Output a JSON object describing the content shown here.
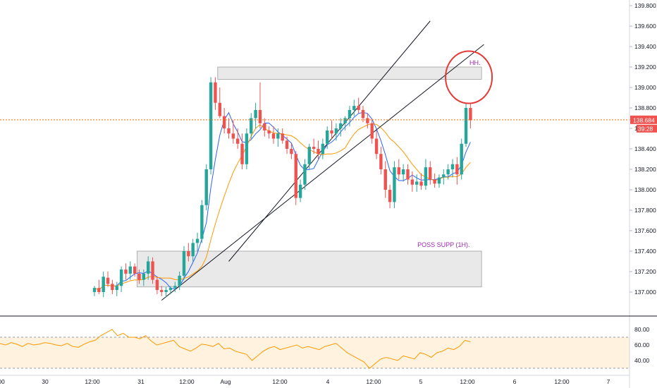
{
  "colors": {
    "up": "#26a69a",
    "down": "#ef5350",
    "ma_fast": "#2962ff",
    "ma_slow": "#ff9800",
    "rsi_line": "#ff9800",
    "rsi_band": "#fff3e0",
    "zone_fill": "#e0e0e0",
    "zone_stroke": "#9e9e9e",
    "annotation": "#9c27b0",
    "circle": "#e53935",
    "trendline": "#131722",
    "price_line": "#ef6c00"
  },
  "chart_data": [
    {
      "type": "candlestick",
      "title": "",
      "ylim": [
        136.92,
        139.85
      ],
      "x_tick_labels": [
        "00",
        "30",
        "12:00",
        "31",
        "12:00",
        "Aug",
        "12:00",
        "4",
        "12:00",
        "5",
        "12:00",
        "6",
        "12:00",
        "7"
      ],
      "y_tick_labels": [
        "137.000",
        "137.200",
        "137.400",
        "137.600",
        "137.800",
        "138.000",
        "138.200",
        "138.400",
        "138.600",
        "138.800",
        "139.000",
        "139.200",
        "139.400",
        "139.600",
        "139.800"
      ],
      "current_price": "138.684",
      "countdown": "39:28",
      "candles": [
        [
          137.0,
          137.06,
          136.96,
          137.04
        ],
        [
          137.04,
          137.12,
          136.98,
          137.0
        ],
        [
          137.0,
          137.2,
          136.95,
          137.15
        ],
        [
          137.14,
          137.2,
          137.05,
          137.08
        ],
        [
          137.08,
          137.12,
          136.98,
          137.02
        ],
        [
          137.02,
          137.1,
          136.96,
          137.06
        ],
        [
          137.06,
          137.25,
          137.0,
          137.22
        ],
        [
          137.22,
          137.28,
          137.12,
          137.18
        ],
        [
          137.18,
          137.3,
          137.12,
          137.25
        ],
        [
          137.25,
          137.28,
          137.15,
          137.18
        ],
        [
          137.18,
          137.22,
          137.08,
          137.12
        ],
        [
          137.12,
          137.22,
          137.06,
          137.18
        ],
        [
          137.18,
          137.35,
          137.12,
          137.3
        ],
        [
          137.3,
          137.34,
          137.08,
          137.12
        ],
        [
          137.12,
          137.15,
          136.98,
          137.02
        ],
        [
          137.02,
          137.06,
          136.96,
          137.0
        ],
        [
          137.0,
          137.05,
          136.95,
          137.02
        ],
        [
          137.02,
          137.06,
          136.98,
          137.04
        ],
        [
          137.04,
          137.1,
          137.0,
          137.06
        ],
        [
          137.06,
          137.2,
          137.02,
          137.16
        ],
        [
          137.16,
          137.45,
          137.12,
          137.4
        ],
        [
          137.4,
          137.48,
          137.3,
          137.35
        ],
        [
          137.35,
          137.52,
          137.3,
          137.48
        ],
        [
          137.48,
          137.58,
          137.4,
          137.52
        ],
        [
          137.52,
          137.9,
          137.48,
          137.85
        ],
        [
          137.85,
          138.25,
          137.8,
          138.2
        ],
        [
          138.2,
          139.1,
          138.15,
          139.05
        ],
        [
          139.05,
          139.1,
          138.78,
          138.85
        ],
        [
          138.85,
          139.0,
          138.7,
          138.72
        ],
        [
          138.72,
          138.8,
          138.55,
          138.6
        ],
        [
          138.6,
          138.7,
          138.5,
          138.55
        ],
        [
          138.55,
          138.68,
          138.45,
          138.5
        ],
        [
          138.5,
          138.6,
          138.4,
          138.45
        ],
        [
          138.45,
          138.55,
          138.2,
          138.25
        ],
        [
          138.25,
          138.6,
          138.2,
          138.55
        ],
        [
          138.55,
          138.75,
          138.5,
          138.7
        ],
        [
          138.7,
          138.85,
          138.6,
          138.78
        ],
        [
          138.78,
          139.05,
          138.6,
          138.65
        ],
        [
          138.65,
          138.7,
          138.52,
          138.58
        ],
        [
          138.58,
          138.62,
          138.5,
          138.55
        ],
        [
          138.55,
          138.62,
          138.45,
          138.5
        ],
        [
          138.5,
          138.6,
          138.42,
          138.55
        ],
        [
          138.55,
          138.6,
          138.45,
          138.48
        ],
        [
          138.48,
          138.52,
          138.35,
          138.4
        ],
        [
          138.4,
          138.45,
          138.3,
          138.35
        ],
        [
          138.35,
          138.38,
          137.85,
          137.92
        ],
        [
          137.92,
          138.1,
          137.88,
          138.05
        ],
        [
          138.05,
          138.3,
          138.0,
          138.25
        ],
        [
          138.25,
          138.45,
          138.2,
          138.42
        ],
        [
          138.42,
          138.5,
          138.35,
          138.4
        ],
        [
          138.4,
          138.48,
          138.3,
          138.35
        ],
        [
          138.35,
          138.5,
          138.3,
          138.45
        ],
        [
          138.45,
          138.62,
          138.4,
          138.58
        ],
        [
          138.58,
          138.68,
          138.5,
          138.55
        ],
        [
          138.55,
          138.65,
          138.48,
          138.6
        ],
        [
          138.6,
          138.7,
          138.52,
          138.65
        ],
        [
          138.65,
          138.72,
          138.58,
          138.7
        ],
        [
          138.7,
          138.82,
          138.62,
          138.78
        ],
        [
          138.78,
          138.88,
          138.72,
          138.82
        ],
        [
          138.82,
          138.9,
          138.75,
          138.78
        ],
        [
          138.78,
          138.82,
          138.66,
          138.7
        ],
        [
          138.7,
          138.75,
          138.6,
          138.65
        ],
        [
          138.65,
          138.7,
          138.45,
          138.5
        ],
        [
          138.5,
          138.58,
          138.3,
          138.35
        ],
        [
          138.35,
          138.42,
          138.15,
          138.2
        ],
        [
          138.2,
          138.28,
          137.92,
          138.0
        ],
        [
          138.0,
          138.05,
          137.82,
          137.88
        ],
        [
          137.88,
          138.28,
          137.82,
          138.22
        ],
        [
          138.22,
          138.3,
          138.1,
          138.15
        ],
        [
          138.15,
          138.25,
          138.08,
          138.2
        ],
        [
          138.2,
          138.25,
          138.05,
          138.1
        ],
        [
          138.1,
          138.18,
          137.98,
          138.05
        ],
        [
          138.05,
          138.15,
          137.98,
          138.08
        ],
        [
          138.08,
          138.16,
          138.0,
          138.04
        ],
        [
          138.04,
          138.3,
          138.0,
          138.22
        ],
        [
          138.22,
          138.28,
          138.05,
          138.1
        ],
        [
          138.1,
          138.16,
          138.02,
          138.06
        ],
        [
          138.06,
          138.15,
          138.02,
          138.12
        ],
        [
          138.12,
          138.2,
          138.05,
          138.15
        ],
        [
          138.15,
          138.25,
          138.1,
          138.2
        ],
        [
          138.2,
          138.3,
          138.12,
          138.25
        ],
        [
          138.25,
          138.32,
          138.05,
          138.15
        ],
        [
          138.15,
          138.5,
          138.1,
          138.45
        ],
        [
          138.45,
          138.85,
          138.42,
          138.8
        ],
        [
          138.8,
          138.85,
          138.6,
          138.68
        ]
      ],
      "zones": [
        {
          "x_from_bar": 28,
          "x_to_bar": 86,
          "low": 139.08,
          "high": 139.2
        },
        {
          "x_from_bar": 10,
          "x_to_bar": 86,
          "low": 137.05,
          "high": 137.4
        }
      ],
      "annotations": [
        {
          "text": "HH.",
          "bar": 85,
          "price": 139.22
        },
        {
          "text": "POSS SUPP (1H).",
          "bar": 78,
          "price": 137.44
        }
      ]
    },
    {
      "type": "line",
      "title": "",
      "ylim": [
        25,
        95
      ],
      "y_tick_labels": [
        "80.00",
        "60.00",
        "40.00"
      ],
      "band": [
        30,
        70
      ],
      "rsi": [
        62,
        60,
        63,
        61,
        58,
        62,
        60,
        61,
        63,
        62,
        60,
        59,
        62,
        58,
        57,
        61,
        64,
        66,
        72,
        76,
        80,
        72,
        75,
        70,
        70,
        68,
        72,
        65,
        60,
        62,
        64,
        66,
        58,
        55,
        52,
        56,
        61,
        60,
        58,
        62,
        55,
        56,
        52,
        50,
        48,
        40,
        46,
        52,
        56,
        58,
        54,
        56,
        58,
        60,
        56,
        58,
        56,
        54,
        58,
        60,
        62,
        56,
        50,
        46,
        42,
        38,
        30,
        36,
        42,
        44,
        42,
        40,
        46,
        44,
        42,
        50,
        48,
        44,
        50,
        52,
        56,
        54,
        58,
        66,
        64
      ]
    }
  ]
}
